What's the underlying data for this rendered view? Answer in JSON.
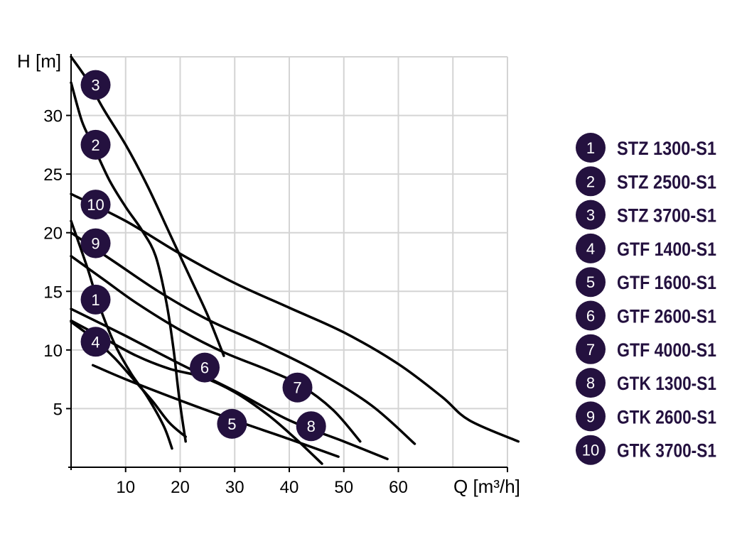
{
  "chart_data": {
    "type": "line",
    "xlabel": "Q [m³/h]",
    "ylabel": "H [m]",
    "xlim": [
      0,
      80
    ],
    "ylim": [
      0,
      35
    ],
    "x_ticks": [
      10,
      20,
      30,
      40,
      50,
      60
    ],
    "x_tick_labels": [
      "10",
      "20",
      "30",
      "40",
      "50",
      "60"
    ],
    "y_ticks": [
      5,
      10,
      15,
      20,
      25,
      30
    ],
    "y_tick_labels": [
      "5",
      "10",
      "15",
      "20",
      "25",
      "30"
    ],
    "grid": true,
    "legend_position": "right",
    "badge_color": "#24113f",
    "line_color": "#000000",
    "series": [
      {
        "id": "1",
        "name": "STZ 1300-S1",
        "label_at": [
          4.5,
          14.3
        ],
        "points": [
          [
            0,
            21
          ],
          [
            3,
            17
          ],
          [
            5,
            14
          ],
          [
            8,
            10.5
          ],
          [
            11,
            8
          ],
          [
            14,
            6
          ],
          [
            17,
            3.5
          ],
          [
            18.5,
            1.6
          ]
        ]
      },
      {
        "id": "2",
        "name": "STZ 2500-S1",
        "label_at": [
          4.5,
          27.5
        ],
        "points": [
          [
            0,
            32.8
          ],
          [
            2,
            29.5
          ],
          [
            4,
            27.5
          ],
          [
            7,
            24.5
          ],
          [
            10,
            22.2
          ],
          [
            13,
            20.2
          ],
          [
            15.5,
            18
          ],
          [
            17.5,
            14
          ],
          [
            18.8,
            10
          ],
          [
            19.8,
            6
          ],
          [
            21,
            2.2
          ]
        ]
      },
      {
        "id": "3",
        "name": "STZ 3700-S1",
        "label_at": [
          4.5,
          32.6
        ],
        "points": [
          [
            0,
            35
          ],
          [
            3,
            33
          ],
          [
            6,
            30.5
          ],
          [
            10,
            27.5
          ],
          [
            14,
            24
          ],
          [
            18,
            20
          ],
          [
            22,
            16
          ],
          [
            25,
            13
          ],
          [
            28,
            9.5
          ]
        ]
      },
      {
        "id": "4",
        "name": "GTF 1400-S1",
        "label_at": [
          4.5,
          10.7
        ],
        "points": [
          [
            0,
            12.4
          ],
          [
            4,
            11
          ],
          [
            8,
            9.3
          ],
          [
            12,
            7.2
          ],
          [
            15,
            5.6
          ],
          [
            18,
            3.8
          ],
          [
            21,
            2.6
          ]
        ]
      },
      {
        "id": "5",
        "name": "GTF 1600-S1",
        "label_at": [
          29.5,
          3.7
        ],
        "points": [
          [
            4,
            8.7
          ],
          [
            10,
            7.5
          ],
          [
            20,
            5.7
          ],
          [
            30,
            4
          ],
          [
            40,
            2.4
          ],
          [
            49,
            0.9
          ]
        ]
      },
      {
        "id": "6",
        "name": "GTF 2600-S1",
        "label_at": [
          24.5,
          8.5
        ],
        "points": [
          [
            0,
            12.5
          ],
          [
            6,
            11
          ],
          [
            12,
            9.5
          ],
          [
            18,
            8.4
          ],
          [
            24,
            7.7
          ],
          [
            30,
            6.4
          ],
          [
            36,
            4.5
          ],
          [
            41,
            2.5
          ],
          [
            46,
            0.3
          ]
        ]
      },
      {
        "id": "7",
        "name": "GTF 4000-S1",
        "label_at": [
          41.5,
          6.8
        ],
        "points": [
          [
            0,
            18
          ],
          [
            6,
            16
          ],
          [
            12,
            14
          ],
          [
            20,
            11.7
          ],
          [
            28,
            9.8
          ],
          [
            36,
            8.3
          ],
          [
            42,
            7
          ],
          [
            48,
            4.9
          ],
          [
            53,
            2.2
          ]
        ]
      },
      {
        "id": "8",
        "name": "GTK 1300-S1",
        "label_at": [
          44,
          3.5
        ],
        "points": [
          [
            0,
            13.5
          ],
          [
            10,
            11.2
          ],
          [
            20,
            8.8
          ],
          [
            30,
            6.5
          ],
          [
            40,
            4
          ],
          [
            50,
            2.2
          ],
          [
            58,
            0.7
          ]
        ]
      },
      {
        "id": "9",
        "name": "GTK 2600-S1",
        "label_at": [
          4.5,
          19.1
        ],
        "points": [
          [
            0,
            20
          ],
          [
            8,
            17.5
          ],
          [
            16,
            15
          ],
          [
            25,
            12.6
          ],
          [
            35,
            10.5
          ],
          [
            45,
            8.2
          ],
          [
            55,
            5.3
          ],
          [
            63,
            2
          ]
        ]
      },
      {
        "id": "10",
        "name": "GTK 3700-S1",
        "label_at": [
          4.5,
          22.4
        ],
        "points": [
          [
            0,
            23.3
          ],
          [
            10,
            21
          ],
          [
            20,
            18.2
          ],
          [
            30,
            15.7
          ],
          [
            40,
            13.6
          ],
          [
            50,
            11.5
          ],
          [
            60,
            8.8
          ],
          [
            68,
            6
          ],
          [
            73,
            4
          ],
          [
            82,
            2.2
          ]
        ]
      }
    ]
  }
}
